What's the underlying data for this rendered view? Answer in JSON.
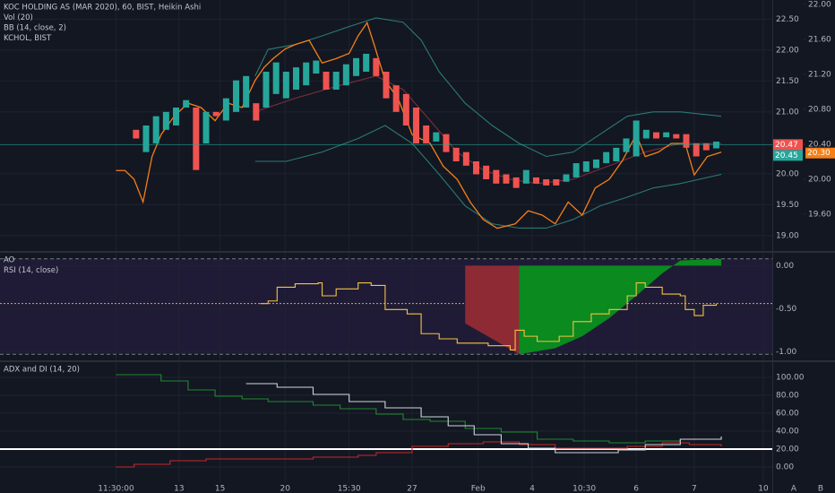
{
  "chart_data": [
    {
      "type": "candlestick",
      "labels": [
        "KOC HOLDING AS (MAR 2020), 60, BIST, Heikin Ashi",
        "Vol (20)",
        "BB (14, close, 2)",
        "KCHOL, BIST"
      ],
      "xlim": [
        -13.6,
        63.6
      ],
      "open": [
        20.71,
        20.35,
        20.49,
        20.71,
        20.78,
        21.07,
        21.07,
        20.49,
        21.0,
        20.86,
        21.0,
        21.07,
        21.14,
        21.07,
        21.29,
        21.22,
        21.36,
        21.43,
        21.62,
        21.65,
        21.36,
        21.43,
        21.58,
        21.65,
        21.87,
        21.65,
        21.43,
        21.29,
        21.07,
        20.78,
        20.52,
        20.64,
        20.42,
        20.35,
        20.2,
        20.13,
        20.06,
        19.99,
        19.94,
        19.84,
        19.94,
        19.91,
        19.91,
        19.87,
        19.94,
        20.03,
        20.09,
        20.17,
        20.2,
        20.35,
        20.28,
        20.57,
        20.67,
        20.59,
        20.64,
        20.64,
        20.49,
        20.49,
        20.41
      ],
      "close": [
        20.57,
        20.78,
        20.93,
        21.0,
        21.07,
        21.19,
        20.06,
        21.0,
        20.93,
        21.22,
        21.51,
        21.58,
        20.86,
        21.65,
        21.8,
        21.65,
        21.72,
        21.8,
        21.83,
        21.36,
        21.65,
        21.77,
        21.87,
        21.94,
        21.58,
        21.22,
        21.0,
        20.78,
        20.49,
        20.49,
        20.67,
        20.35,
        20.2,
        20.13,
        19.99,
        19.91,
        19.84,
        19.84,
        19.77,
        20.06,
        19.84,
        19.81,
        19.81,
        19.99,
        20.17,
        20.2,
        20.23,
        20.35,
        20.42,
        20.57,
        20.86,
        20.71,
        20.57,
        20.67,
        20.57,
        20.42,
        20.28,
        20.38,
        20.52
      ],
      "up_color": "#26a69a",
      "down_color": "#ef5350",
      "ylim": [
        18.75,
        22.81
      ],
      "yticks": [
        {
          "value": 22.5,
          "label": "22.50"
        },
        {
          "value": 22,
          "label": "22.00"
        },
        {
          "value": 21.5,
          "label": "21.50"
        },
        {
          "value": 21,
          "label": "21.00"
        },
        {
          "value": 20,
          "label": "20.00"
        },
        {
          "value": 19.5,
          "label": "19.50"
        },
        {
          "value": 19,
          "label": "19.00"
        }
      ],
      "y2lim": [
        19.18,
        22.05
      ],
      "y2ticks": [
        {
          "value": 22,
          "label": "22.00"
        },
        {
          "value": 21.6,
          "label": "21.60"
        },
        {
          "value": 21.2,
          "label": "21.20"
        },
        {
          "value": 20.8,
          "label": "20.80"
        },
        {
          "value": 20.4,
          "label": "20.40"
        },
        {
          "value": 20,
          "label": "20.00"
        },
        {
          "value": 19.6,
          "label": "19.60"
        }
      ],
      "lines": [
        {
          "color": "#2b7a74",
          "x": [
            11.9,
            13.2,
            15.9,
            18.6,
            21.3,
            24.0,
            26.7,
            28.5,
            30.3,
            32.9,
            35.6,
            38.3,
            41.0,
            43.7,
            46.4,
            49.1,
            51.7,
            54.4,
            58.5
          ],
          "values": [
            21.58,
            22.01,
            22.09,
            22.23,
            22.38,
            22.52,
            22.45,
            22.16,
            21.65,
            21.14,
            20.78,
            20.49,
            20.28,
            20.35,
            20.64,
            20.93,
            21.0,
            21.0,
            20.93
          ]
        },
        {
          "color": "#2b7a74",
          "x": [
            11.9,
            15.0,
            18.6,
            22.2,
            24.9,
            27.6,
            30.3,
            32.9,
            35.6,
            38.3,
            41.0,
            43.7,
            46.4,
            49.1,
            51.7,
            54.4,
            58.5
          ],
          "values": [
            20.2,
            20.2,
            20.35,
            20.57,
            20.78,
            20.49,
            19.99,
            19.48,
            19.19,
            19.12,
            19.12,
            19.26,
            19.48,
            19.62,
            19.77,
            19.84,
            19.99
          ]
        },
        {
          "color": "#7a2e3c",
          "x": [
            11.9,
            15.9,
            20.4,
            24.0,
            26.7,
            29.4,
            32.1,
            34.7,
            37.4,
            40.1,
            43.7,
            47.3,
            50.9,
            54.4,
            58.5
          ],
          "values": [
            21.0,
            21.22,
            21.43,
            21.58,
            21.36,
            20.86,
            20.35,
            20.06,
            19.91,
            19.84,
            19.91,
            20.13,
            20.35,
            20.49,
            20.49
          ]
        },
        {
          "color": "#f57f17",
          "axis": "y2",
          "x": [
            -2.0,
            -1.1,
            -0.2,
            0.7,
            1.6,
            2.5,
            3.8,
            5.2,
            6.5,
            7.9,
            9.2,
            10.6,
            11.9,
            12.8,
            13.7,
            14.9,
            15.9,
            17.3,
            18.6,
            20.0,
            21.3,
            22.2,
            23.1,
            23.8,
            24.9,
            26.2,
            27.6,
            29.4,
            30.7,
            32.1,
            33.4,
            34.7,
            36.1,
            37.9,
            39.2,
            40.6,
            41.9,
            43.2,
            44.6,
            45.9,
            47.3,
            48.6,
            50.0,
            50.9,
            52.2,
            53.5,
            54.9,
            55.8,
            57.1,
            58.5
          ],
          "values": [
            20.1,
            20.1,
            20.0,
            19.74,
            20.26,
            20.51,
            20.72,
            20.87,
            20.82,
            20.67,
            20.87,
            20.82,
            21.13,
            21.28,
            21.38,
            21.49,
            21.54,
            21.59,
            21.33,
            21.38,
            21.44,
            21.64,
            21.79,
            21.54,
            21.13,
            20.92,
            20.51,
            20.41,
            20.15,
            20.0,
            19.74,
            19.54,
            19.44,
            19.49,
            19.64,
            19.59,
            19.49,
            19.74,
            19.59,
            19.9,
            20.0,
            20.21,
            20.51,
            20.26,
            20.31,
            20.41,
            20.41,
            20.05,
            20.26,
            20.31
          ]
        }
      ],
      "price_labels": [
        {
          "value": 20.47,
          "label": "20.47",
          "color": "#ef5350"
        },
        {
          "value": 20.45,
          "label": "20.45",
          "color": "#26a69a"
        },
        {
          "value": 20.3,
          "label": "20.30",
          "color": "#f57f17",
          "axis": "y2"
        }
      ]
    },
    {
      "type": "oscillator",
      "labels": [
        "AO",
        "RSI (14, close)"
      ],
      "xlim": [
        -13.6,
        63.6
      ],
      "ylim": [
        -1.1,
        0.15
      ],
      "yticks": [
        {
          "value": 0,
          "label": "0.00"
        },
        {
          "value": -0.5,
          "label": "-0.50"
        },
        {
          "value": -1,
          "label": "-1.00"
        }
      ],
      "hlines": [
        {
          "value": 0.08,
          "color": "#787b86"
        },
        {
          "value": -1.03,
          "color": "#787b86"
        },
        {
          "value": -0.44,
          "color": "#f5a623"
        }
      ],
      "band_color": "#1f1b36",
      "areas": [
        {
          "color": "#8e2a34",
          "x": [
            32.9,
            32.9,
            38.3
          ],
          "values": [
            0,
            -0.67,
            -1.03
          ]
        },
        {
          "color": "#0a8a1f",
          "x": [
            38.3,
            41.9,
            44.6,
            47.3,
            50.0,
            52.6,
            54.4,
            58.5
          ],
          "values": [
            -1.03,
            -0.96,
            -0.82,
            -0.61,
            -0.35,
            -0.09,
            0.06,
            0.08
          ]
        }
      ],
      "lines": [
        {
          "color": "#f5c242",
          "step": true,
          "x": [
            12.4,
            13.2,
            14.1,
            15.9,
            18.2,
            18.6,
            20.0,
            21.3,
            22.2,
            23.5,
            24.9,
            27.1,
            28.5,
            30.3,
            32.1,
            35.2,
            37.4,
            37.9,
            38.8,
            40.1,
            42.3,
            43.7,
            45.5,
            47.3,
            49.1,
            50.0,
            50.9,
            52.6,
            54.4,
            54.9,
            55.8,
            56.7,
            58.0
          ],
          "values": [
            -0.44,
            -0.41,
            -0.25,
            -0.21,
            -0.2,
            -0.35,
            -0.27,
            -0.27,
            -0.2,
            -0.23,
            -0.51,
            -0.56,
            -0.79,
            -0.85,
            -0.9,
            -0.93,
            -0.98,
            -0.75,
            -0.82,
            -0.88,
            -0.82,
            -0.65,
            -0.56,
            -0.51,
            -0.35,
            -0.2,
            -0.25,
            -0.33,
            -0.35,
            -0.51,
            -0.58,
            -0.46,
            -0.44
          ]
        }
      ]
    },
    {
      "type": "line",
      "labels": [
        "ADX and DI (14, 20)"
      ],
      "xlim": [
        -13.6,
        63.6
      ],
      "xticks": [
        {
          "value": -2.0,
          "label": "11:30:00"
        },
        {
          "value": 4.3,
          "label": "13"
        },
        {
          "value": 8.4,
          "label": "15"
        },
        {
          "value": 14.9,
          "label": "20"
        },
        {
          "value": 21.3,
          "label": "15:30"
        },
        {
          "value": 27.6,
          "label": "27"
        },
        {
          "value": 34.2,
          "label": "Feb"
        },
        {
          "value": 39.6,
          "label": "4"
        },
        {
          "value": 44.8,
          "label": "10:30"
        },
        {
          "value": 50.0,
          "label": "6"
        },
        {
          "value": 55.8,
          "label": "7"
        },
        {
          "value": 62.7,
          "label": "10"
        }
      ],
      "ylim": [
        -17,
        117
      ],
      "yticks": [
        {
          "value": 100,
          "label": "100.00"
        },
        {
          "value": 80,
          "label": "80.00"
        },
        {
          "value": 60,
          "label": "60.00"
        },
        {
          "value": 40,
          "label": "40.00"
        },
        {
          "value": 20,
          "label": "20.00"
        },
        {
          "value": 0,
          "label": "0.00"
        }
      ],
      "hlines": [
        {
          "value": 20,
          "color": "#ffffff"
        }
      ],
      "lines": [
        {
          "color": "#1f8a2e",
          "step": true,
          "x": [
            -2.0,
            2.5,
            5.2,
            7.9,
            10.6,
            13.2,
            17.7,
            20.4,
            24.0,
            26.7,
            29.4,
            32.9,
            36.5,
            40.1,
            43.7,
            47.3,
            50.9,
            54.4,
            58.5
          ],
          "values": [
            103,
            96,
            86,
            79,
            76,
            73,
            69,
            65,
            59,
            53,
            51,
            43,
            39,
            31,
            29,
            27,
            29,
            31,
            33
          ]
        },
        {
          "color": "#c62828",
          "step": true,
          "x": [
            -2.0,
            -0.2,
            3.4,
            7.0,
            13.2,
            17.7,
            22.2,
            24.0,
            27.6,
            31.2,
            34.7,
            38.3,
            41.9,
            45.5,
            49.1,
            52.6,
            55.3,
            58.5
          ],
          "values": [
            0,
            3,
            7,
            9,
            9,
            11,
            13,
            16,
            23,
            26,
            28,
            25,
            21,
            21,
            23,
            27,
            25,
            23
          ]
        },
        {
          "color": "#d1d4dc",
          "step": true,
          "x": [
            11.0,
            14.1,
            17.7,
            21.3,
            24.9,
            28.5,
            31.2,
            33.8,
            36.5,
            39.2,
            41.9,
            44.6,
            48.2,
            50.9,
            54.4,
            58.5
          ],
          "values": [
            93,
            89,
            81,
            73,
            66,
            56,
            46,
            36,
            26,
            21,
            16,
            16,
            19,
            25,
            31,
            34
          ]
        }
      ],
      "corner_labels": [
        "A",
        "B"
      ]
    }
  ]
}
